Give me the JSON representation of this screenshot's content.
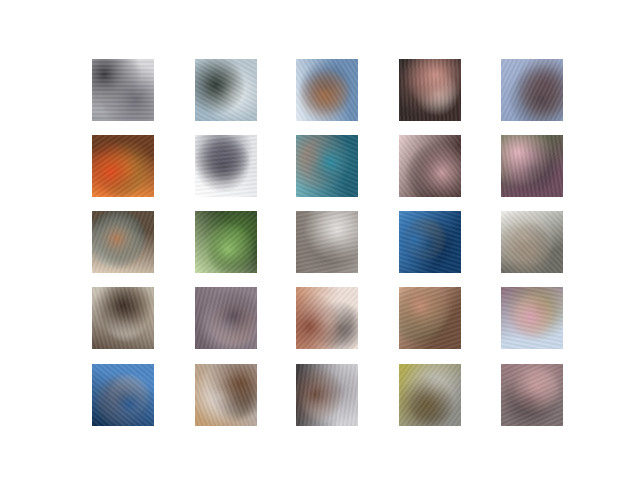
{
  "figure": {
    "rows": 5,
    "cols": 5,
    "tiles": [
      {
        "bg": "#d9d9dc",
        "colors": [
          "#3b3a40",
          "#6d6b73",
          "#ffffff",
          "#9a9aa2"
        ]
      },
      {
        "bg": "#b9c7cf",
        "colors": [
          "#2f3a35",
          "#eef2f4",
          "#6b7b6e",
          "#9bb3c3"
        ]
      },
      {
        "bg": "#6a8db3",
        "colors": [
          "#a06d48",
          "#3c4a66",
          "#d8b48e",
          "#e7eef5"
        ]
      },
      {
        "bg": "#3b2b29",
        "colors": [
          "#c98f84",
          "#6d4c46",
          "#efe3dc",
          "#2a2524"
        ]
      },
      {
        "bg": "#8fa1c4",
        "colors": [
          "#5d4a50",
          "#3e3a3f",
          "#c69a96",
          "#a5b4d3"
        ]
      },
      {
        "bg": "#6b3a1e",
        "colors": [
          "#e04a1b",
          "#b57a2c",
          "#4f6a2a",
          "#f28a3a"
        ]
      },
      {
        "bg": "#e4e6ea",
        "colors": [
          "#5f5e6b",
          "#3d3b45",
          "#a2a1ab",
          "#ffffff"
        ]
      },
      {
        "bg": "#1f5f73",
        "colors": [
          "#2a8aa0",
          "#b07b66",
          "#0e3b4e",
          "#6fb0b8"
        ]
      },
      {
        "bg": "#4a3533",
        "colors": [
          "#c59a9c",
          "#1e1a1a",
          "#8e6d70",
          "#e8cfcf"
        ]
      },
      {
        "bg": "#6b4a5c",
        "colors": [
          "#e3b3bd",
          "#3c3339",
          "#9a6e7e",
          "#4f6a3c"
        ]
      },
      {
        "bg": "#5a4a3a",
        "colors": [
          "#b47a52",
          "#3aa0c7",
          "#8a6e4e",
          "#e2d1bd"
        ]
      },
      {
        "bg": "#2b3d22",
        "colors": [
          "#8fbf6a",
          "#4f7a35",
          "#1a2314",
          "#c9e0a8"
        ]
      },
      {
        "bg": "#9c9590",
        "colors": [
          "#e3e1df",
          "#6b625b",
          "#b4aba3",
          "#7d746d"
        ]
      },
      {
        "bg": "#0f3a68",
        "colors": [
          "#2a6aa8",
          "#0a2240",
          "#c28a3a",
          "#4a8bc7"
        ]
      },
      {
        "bg": "#6b6b63",
        "colors": [
          "#9b8c7a",
          "#c9c3b6",
          "#3b342e",
          "#f2f2ee"
        ]
      },
      {
        "bg": "#c9c2b3",
        "colors": [
          "#3b2c23",
          "#8a7a66",
          "#f2efe9",
          "#5c4c3f"
        ]
      },
      {
        "bg": "#8a7c86",
        "colors": [
          "#5b4d56",
          "#b9aab3",
          "#a27a5e",
          "#6a5b64"
        ]
      },
      {
        "bg": "#ecdfd8",
        "colors": [
          "#8a4b39",
          "#f1e6df",
          "#3d3433",
          "#c88b6c"
        ]
      },
      {
        "bg": "#6e4d3a",
        "colors": [
          "#c48c72",
          "#4a5a3a",
          "#9a6b52",
          "#e0b49a"
        ]
      },
      {
        "bg": "#c9d8ea",
        "colors": [
          "#d7a2b3",
          "#9a8a5a",
          "#f1e2a6",
          "#8b6d77"
        ]
      },
      {
        "bg": "#4d86c4",
        "colors": [
          "#2a5a92",
          "#7a5a48",
          "#e9eef5",
          "#0d2a4d"
        ]
      },
      {
        "bg": "#b5aaa4",
        "colors": [
          "#6b4a32",
          "#e7e1de",
          "#2f2a27",
          "#c59c6c"
        ]
      },
      {
        "bg": "#d1d1d6",
        "colors": [
          "#6b4a3c",
          "#a39fa5",
          "#f0f0f2",
          "#3a3536"
        ]
      },
      {
        "bg": "#8c8c87",
        "colors": [
          "#6a5a38",
          "#c3c2be",
          "#3d3b35",
          "#b7b04c"
        ]
      },
      {
        "bg": "#7a6d6f",
        "colors": [
          "#c59a9b",
          "#4a3e40",
          "#e3c2bf",
          "#9a7b7e"
        ]
      }
    ]
  }
}
